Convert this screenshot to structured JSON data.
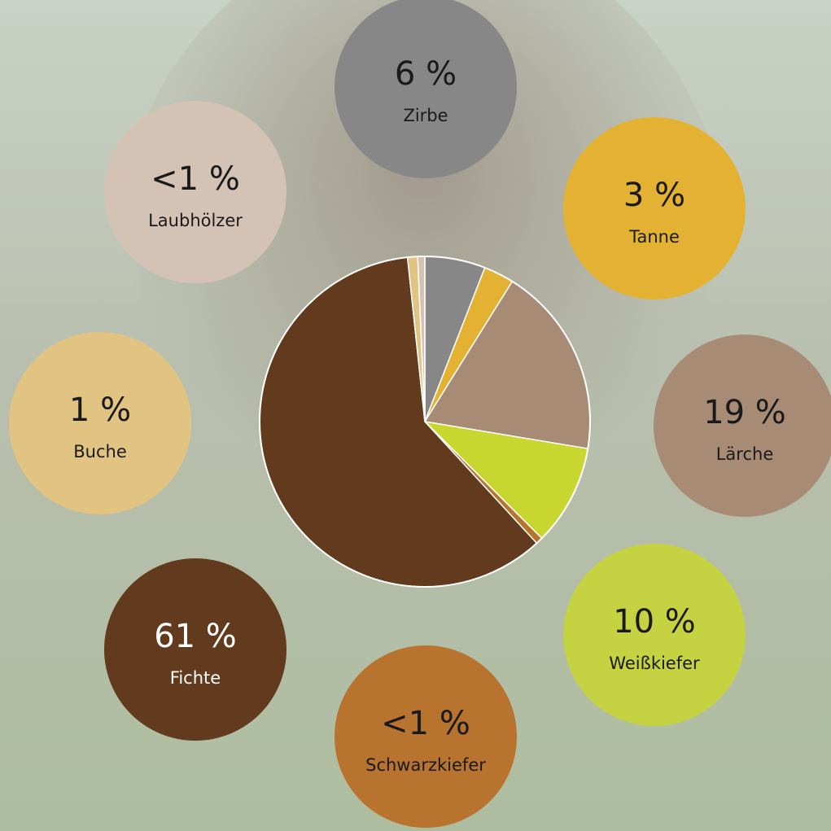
{
  "chart_data": {
    "type": "pie",
    "categories": [
      "Zirbe",
      "Tanne",
      "Lärche",
      "Weißkiefer",
      "Schwarzkiefer",
      "Fichte",
      "Buche",
      "Laubhölzer"
    ],
    "values": [
      6,
      3,
      19,
      10,
      0.7,
      61,
      1,
      0.7
    ],
    "value_labels": [
      "6 %",
      "3 %",
      "19 %",
      "10 %",
      "<1 %",
      "61 %",
      "1 %",
      "<1 %"
    ],
    "colors": [
      "#878787",
      "#e3b232",
      "#a88b75",
      "#c8d630",
      "#b8732e",
      "#623a1d",
      "#e2c482",
      "#d4c3b5"
    ]
  }
}
